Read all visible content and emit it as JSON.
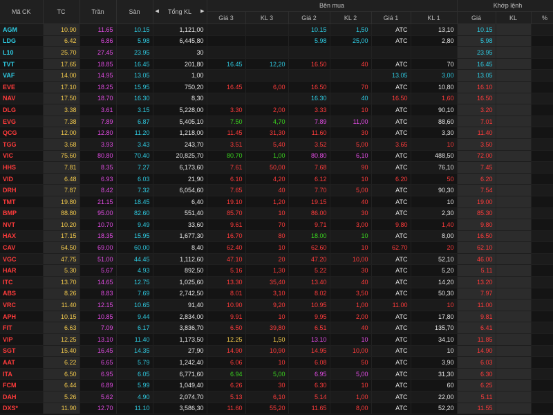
{
  "headers": {
    "symbol": "Mã CK",
    "ref": "TC",
    "ceil": "Trần",
    "floor": "Sàn",
    "total_vol": "Tổng KL",
    "bid_group": "Bên mua",
    "match_group": "Khớp lệnh",
    "bid3_price": "Giá 3",
    "bid3_vol": "KL 3",
    "bid2_price": "Giá 2",
    "bid2_vol": "KL 2",
    "bid1_price": "Giá 1",
    "bid1_vol": "KL 1",
    "match_price": "Giá",
    "match_vol": "KL",
    "match_pct": "%"
  },
  "colors": {
    "ref": "#f2c94c",
    "ceiling": "#e14be3",
    "floor": "#2ec9e0",
    "up": "#3ad11f",
    "down": "#ff3b3b",
    "neutral": "#e6e6e6"
  },
  "rows": [
    {
      "sym": "AGM",
      "symc": "floor",
      "ref": "10.90",
      "ceil": "11.65",
      "floor": "10.15",
      "tkl": "1,121,00",
      "g3": "",
      "g3c": "",
      "kl3": "",
      "kl3c": "",
      "g2": "10.15",
      "g2c": "floor",
      "kl2": "1,50",
      "kl2c": "floor",
      "g1": "ATC",
      "g1c": "w",
      "kl1": "13,10",
      "kl1c": "w",
      "mp": "10.15",
      "mpc": "floor",
      "mv": "",
      "mvc": "",
      "pct": "-",
      "pctc": "floor"
    },
    {
      "sym": "LDG",
      "symc": "floor",
      "ref": "6.42",
      "ceil": "6.86",
      "floor": "5.98",
      "tkl": "6,445,80",
      "g3": "",
      "g3c": "",
      "kl3": "",
      "kl3c": "",
      "g2": "5.98",
      "g2c": "floor",
      "kl2": "25,00",
      "kl2c": "floor",
      "g1": "ATC",
      "g1c": "w",
      "kl1": "2,80",
      "kl1c": "w",
      "mp": "5.98",
      "mpc": "floor",
      "mv": "",
      "mvc": "",
      "pct": "-",
      "pctc": "floor"
    },
    {
      "sym": "L10",
      "symc": "floor",
      "ref": "25.70",
      "ceil": "27.45",
      "floor": "23.95",
      "tkl": "30",
      "g3": "",
      "g3c": "",
      "kl3": "",
      "kl3c": "",
      "g2": "",
      "g2c": "",
      "kl2": "",
      "kl2c": "",
      "g1": "",
      "g1c": "",
      "kl1": "",
      "kl1c": "",
      "mp": "23.95",
      "mpc": "floor",
      "mv": "",
      "mvc": "",
      "pct": "-",
      "pctc": "floor"
    },
    {
      "sym": "TVT",
      "symc": "floor",
      "ref": "17.65",
      "ceil": "18.85",
      "floor": "16.45",
      "tkl": "201,80",
      "g3": "16.45",
      "g3c": "floor",
      "kl3": "12,20",
      "kl3c": "floor",
      "g2": "16.50",
      "g2c": "down",
      "kl2": "40",
      "kl2c": "down",
      "g1": "ATC",
      "g1c": "w",
      "kl1": "70",
      "kl1c": "w",
      "mp": "16.45",
      "mpc": "floor",
      "mv": "",
      "mvc": "",
      "pct": "-",
      "pctc": "floor"
    },
    {
      "sym": "VAF",
      "symc": "floor",
      "ref": "14.00",
      "ceil": "14.95",
      "floor": "13.05",
      "tkl": "1,00",
      "g3": "",
      "g3c": "",
      "kl3": "",
      "kl3c": "",
      "g2": "",
      "g2c": "",
      "kl2": "",
      "kl2c": "",
      "g1": "13.05",
      "g1c": "floor",
      "kl1": "3,00",
      "kl1c": "floor",
      "mp": "13.05",
      "mpc": "floor",
      "mv": "",
      "mvc": "",
      "pct": "-",
      "pctc": "floor"
    },
    {
      "sym": "EVE",
      "symc": "down",
      "ref": "17.10",
      "ceil": "18.25",
      "floor": "15.95",
      "tkl": "750,20",
      "g3": "16.45",
      "g3c": "down",
      "kl3": "6,00",
      "kl3c": "down",
      "g2": "16.50",
      "g2c": "down",
      "kl2": "70",
      "kl2c": "down",
      "g1": "ATC",
      "g1c": "w",
      "kl1": "10,80",
      "kl1c": "w",
      "mp": "16.10",
      "mpc": "down",
      "mv": "",
      "mvc": "",
      "pct": "-",
      "pctc": "down"
    },
    {
      "sym": "NAV",
      "symc": "down",
      "ref": "17.50",
      "ceil": "18.70",
      "floor": "16.30",
      "tkl": "8,30",
      "g3": "",
      "g3c": "",
      "kl3": "",
      "kl3c": "",
      "g2": "16.30",
      "g2c": "floor",
      "kl2": "40",
      "kl2c": "floor",
      "g1": "16.50",
      "g1c": "down",
      "kl1": "1,60",
      "kl1c": "down",
      "mp": "16.50",
      "mpc": "down",
      "mv": "",
      "mvc": "",
      "pct": "-",
      "pctc": "down"
    },
    {
      "sym": "DLG",
      "symc": "down",
      "ref": "3.38",
      "ceil": "3.61",
      "floor": "3.15",
      "tkl": "5,228,00",
      "g3": "3.30",
      "g3c": "down",
      "kl3": "2,00",
      "kl3c": "down",
      "g2": "3.33",
      "g2c": "down",
      "kl2": "10",
      "kl2c": "down",
      "g1": "ATC",
      "g1c": "w",
      "kl1": "90,10",
      "kl1c": "w",
      "mp": "3.20",
      "mpc": "down",
      "mv": "",
      "mvc": "",
      "pct": "-",
      "pctc": "down"
    },
    {
      "sym": "EVG",
      "symc": "down",
      "ref": "7.38",
      "ceil": "7.89",
      "floor": "6.87",
      "tkl": "5,405,10",
      "g3": "7.50",
      "g3c": "up",
      "kl3": "4,70",
      "kl3c": "up",
      "g2": "7.89",
      "g2c": "ceil",
      "kl2": "11,00",
      "kl2c": "ceil",
      "g1": "ATC",
      "g1c": "w",
      "kl1": "88,60",
      "kl1c": "w",
      "mp": "7.01",
      "mpc": "down",
      "mv": "",
      "mvc": "",
      "pct": "-",
      "pctc": "down"
    },
    {
      "sym": "QCG",
      "symc": "down",
      "ref": "12.00",
      "ceil": "12.80",
      "floor": "11.20",
      "tkl": "1,218,00",
      "g3": "11.45",
      "g3c": "down",
      "kl3": "31,30",
      "kl3c": "down",
      "g2": "11.60",
      "g2c": "down",
      "kl2": "30",
      "kl2c": "down",
      "g1": "ATC",
      "g1c": "w",
      "kl1": "3,30",
      "kl1c": "w",
      "mp": "11.40",
      "mpc": "down",
      "mv": "",
      "mvc": "",
      "pct": "-",
      "pctc": "down"
    },
    {
      "sym": "TGG",
      "symc": "down",
      "ref": "3.68",
      "ceil": "3.93",
      "floor": "3.43",
      "tkl": "243,70",
      "g3": "3.51",
      "g3c": "down",
      "kl3": "5,40",
      "kl3c": "down",
      "g2": "3.52",
      "g2c": "down",
      "kl2": "5,00",
      "kl2c": "down",
      "g1": "3.65",
      "g1c": "down",
      "kl1": "10",
      "kl1c": "down",
      "mp": "3.50",
      "mpc": "down",
      "mv": "",
      "mvc": "",
      "pct": "-",
      "pctc": "down"
    },
    {
      "sym": "VIC",
      "symc": "down",
      "ref": "75.60",
      "ceil": "80.80",
      "floor": "70.40",
      "tkl": "20,825,70",
      "g3": "80.70",
      "g3c": "up",
      "kl3": "1,00",
      "kl3c": "up",
      "g2": "80.80",
      "g2c": "ceil",
      "kl2": "6,10",
      "kl2c": "ceil",
      "g1": "ATC",
      "g1c": "w",
      "kl1": "488,50",
      "kl1c": "w",
      "mp": "72.00",
      "mpc": "down",
      "mv": "",
      "mvc": "",
      "pct": "-",
      "pctc": "down"
    },
    {
      "sym": "HHS",
      "symc": "down",
      "ref": "7.81",
      "ceil": "8.35",
      "floor": "7.27",
      "tkl": "6,173,60",
      "g3": "7.61",
      "g3c": "down",
      "kl3": "50,00",
      "kl3c": "down",
      "g2": "7.68",
      "g2c": "down",
      "kl2": "90",
      "kl2c": "down",
      "g1": "ATC",
      "g1c": "w",
      "kl1": "76,10",
      "kl1c": "w",
      "mp": "7.45",
      "mpc": "down",
      "mv": "",
      "mvc": "",
      "pct": "-",
      "pctc": "down"
    },
    {
      "sym": "VID",
      "symc": "down",
      "ref": "6.48",
      "ceil": "6.93",
      "floor": "6.03",
      "tkl": "21,90",
      "g3": "6.10",
      "g3c": "down",
      "kl3": "4,20",
      "kl3c": "down",
      "g2": "6.12",
      "g2c": "down",
      "kl2": "10",
      "kl2c": "down",
      "g1": "6.20",
      "g1c": "down",
      "kl1": "50",
      "kl1c": "down",
      "mp": "6.20",
      "mpc": "down",
      "mv": "",
      "mvc": "",
      "pct": "-",
      "pctc": "down"
    },
    {
      "sym": "DRH",
      "symc": "down",
      "ref": "7.87",
      "ceil": "8.42",
      "floor": "7.32",
      "tkl": "6,054,60",
      "g3": "7.65",
      "g3c": "down",
      "kl3": "40",
      "kl3c": "down",
      "g2": "7.70",
      "g2c": "down",
      "kl2": "5,00",
      "kl2c": "down",
      "g1": "ATC",
      "g1c": "w",
      "kl1": "90,30",
      "kl1c": "w",
      "mp": "7.54",
      "mpc": "down",
      "mv": "",
      "mvc": "",
      "pct": "-",
      "pctc": "down"
    },
    {
      "sym": "TMT",
      "symc": "down",
      "ref": "19.80",
      "ceil": "21.15",
      "floor": "18.45",
      "tkl": "6,40",
      "g3": "19.10",
      "g3c": "down",
      "kl3": "1,20",
      "kl3c": "down",
      "g2": "19.15",
      "g2c": "down",
      "kl2": "40",
      "kl2c": "down",
      "g1": "ATC",
      "g1c": "w",
      "kl1": "10",
      "kl1c": "w",
      "mp": "19.00",
      "mpc": "down",
      "mv": "",
      "mvc": "",
      "pct": "-",
      "pctc": "down"
    },
    {
      "sym": "BMP",
      "symc": "down",
      "ref": "88.80",
      "ceil": "95.00",
      "floor": "82.60",
      "tkl": "551,40",
      "g3": "85.70",
      "g3c": "down",
      "kl3": "10",
      "kl3c": "down",
      "g2": "86.00",
      "g2c": "down",
      "kl2": "30",
      "kl2c": "down",
      "g1": "ATC",
      "g1c": "w",
      "kl1": "2,30",
      "kl1c": "w",
      "mp": "85.30",
      "mpc": "down",
      "mv": "",
      "mvc": "",
      "pct": "-",
      "pctc": "down"
    },
    {
      "sym": "NVT",
      "symc": "down",
      "ref": "10.20",
      "ceil": "10.70",
      "floor": "9.49",
      "tkl": "33,60",
      "g3": "9.61",
      "g3c": "down",
      "kl3": "70",
      "kl3c": "down",
      "g2": "9.71",
      "g2c": "down",
      "kl2": "3,00",
      "kl2c": "down",
      "g1": "9.80",
      "g1c": "down",
      "kl1": "1,40",
      "kl1c": "down",
      "mp": "9.80",
      "mpc": "down",
      "mv": "",
      "mvc": "",
      "pct": "-",
      "pctc": "down"
    },
    {
      "sym": "HAX",
      "symc": "down",
      "ref": "17.15",
      "ceil": "18.35",
      "floor": "15.95",
      "tkl": "1,677,30",
      "g3": "16.70",
      "g3c": "down",
      "kl3": "80",
      "kl3c": "down",
      "g2": "18.00",
      "g2c": "up",
      "kl2": "10",
      "kl2c": "up",
      "g1": "ATC",
      "g1c": "w",
      "kl1": "8,00",
      "kl1c": "w",
      "mp": "16.50",
      "mpc": "down",
      "mv": "",
      "mvc": "",
      "pct": "-",
      "pctc": "down"
    },
    {
      "sym": "CAV",
      "symc": "down",
      "ref": "64.50",
      "ceil": "69.00",
      "floor": "60.00",
      "tkl": "8,40",
      "g3": "62.40",
      "g3c": "down",
      "kl3": "10",
      "kl3c": "down",
      "g2": "62.60",
      "g2c": "down",
      "kl2": "10",
      "kl2c": "down",
      "g1": "62.70",
      "g1c": "down",
      "kl1": "20",
      "kl1c": "down",
      "mp": "62.10",
      "mpc": "down",
      "mv": "",
      "mvc": "",
      "pct": "-",
      "pctc": "down"
    },
    {
      "sym": "VGC",
      "symc": "down",
      "ref": "47.75",
      "ceil": "51.00",
      "floor": "44.45",
      "tkl": "1,112,60",
      "g3": "47.10",
      "g3c": "down",
      "kl3": "20",
      "kl3c": "down",
      "g2": "47.20",
      "g2c": "down",
      "kl2": "10,00",
      "kl2c": "down",
      "g1": "ATC",
      "g1c": "w",
      "kl1": "52,10",
      "kl1c": "w",
      "mp": "46.00",
      "mpc": "down",
      "mv": "",
      "mvc": "",
      "pct": "-",
      "pctc": "down"
    },
    {
      "sym": "HAR",
      "symc": "down",
      "ref": "5.30",
      "ceil": "5.67",
      "floor": "4.93",
      "tkl": "892,50",
      "g3": "5.16",
      "g3c": "down",
      "kl3": "1,30",
      "kl3c": "down",
      "g2": "5.22",
      "g2c": "down",
      "kl2": "30",
      "kl2c": "down",
      "g1": "ATC",
      "g1c": "w",
      "kl1": "5,20",
      "kl1c": "w",
      "mp": "5.11",
      "mpc": "down",
      "mv": "",
      "mvc": "",
      "pct": "-",
      "pctc": "down"
    },
    {
      "sym": "ITC",
      "symc": "down",
      "ref": "13.70",
      "ceil": "14.65",
      "floor": "12.75",
      "tkl": "1,025,60",
      "g3": "13.30",
      "g3c": "down",
      "kl3": "35,40",
      "kl3c": "down",
      "g2": "13.40",
      "g2c": "down",
      "kl2": "40",
      "kl2c": "down",
      "g1": "ATC",
      "g1c": "w",
      "kl1": "14,20",
      "kl1c": "w",
      "mp": "13.20",
      "mpc": "down",
      "mv": "",
      "mvc": "",
      "pct": "-",
      "pctc": "down"
    },
    {
      "sym": "ABS",
      "symc": "down",
      "ref": "8.26",
      "ceil": "8.83",
      "floor": "7.69",
      "tkl": "2,742,50",
      "g3": "8.01",
      "g3c": "down",
      "kl3": "3,10",
      "kl3c": "down",
      "g2": "8.02",
      "g2c": "down",
      "kl2": "3,50",
      "kl2c": "down",
      "g1": "ATC",
      "g1c": "w",
      "kl1": "50,30",
      "kl1c": "w",
      "mp": "7.97",
      "mpc": "down",
      "mv": "",
      "mvc": "",
      "pct": "-",
      "pctc": "down"
    },
    {
      "sym": "VRC",
      "symc": "down",
      "ref": "11.40",
      "ceil": "12.15",
      "floor": "10.65",
      "tkl": "91,40",
      "g3": "10.90",
      "g3c": "down",
      "kl3": "9,20",
      "kl3c": "down",
      "g2": "10.95",
      "g2c": "down",
      "kl2": "1,00",
      "kl2c": "down",
      "g1": "11.00",
      "g1c": "down",
      "kl1": "10",
      "kl1c": "down",
      "mp": "11.00",
      "mpc": "down",
      "mv": "",
      "mvc": "",
      "pct": "-",
      "pctc": "down"
    },
    {
      "sym": "APH",
      "symc": "down",
      "ref": "10.15",
      "ceil": "10.85",
      "floor": "9.44",
      "tkl": "2,834,00",
      "g3": "9.91",
      "g3c": "down",
      "kl3": "10",
      "kl3c": "down",
      "g2": "9.95",
      "g2c": "down",
      "kl2": "2,00",
      "kl2c": "down",
      "g1": "ATC",
      "g1c": "w",
      "kl1": "17,80",
      "kl1c": "w",
      "mp": "9.81",
      "mpc": "down",
      "mv": "",
      "mvc": "",
      "pct": "-",
      "pctc": "down"
    },
    {
      "sym": "FIT",
      "symc": "down",
      "ref": "6.63",
      "ceil": "7.09",
      "floor": "6.17",
      "tkl": "3,836,70",
      "g3": "6.50",
      "g3c": "down",
      "kl3": "39,80",
      "kl3c": "down",
      "g2": "6.51",
      "g2c": "down",
      "kl2": "40",
      "kl2c": "down",
      "g1": "ATC",
      "g1c": "w",
      "kl1": "135,70",
      "kl1c": "w",
      "mp": "6.41",
      "mpc": "down",
      "mv": "",
      "mvc": "",
      "pct": "-",
      "pctc": "down"
    },
    {
      "sym": "VIP",
      "symc": "down",
      "ref": "12.25",
      "ceil": "13.10",
      "floor": "11.40",
      "tkl": "1,173,50",
      "g3": "12.25",
      "g3c": "ref",
      "kl3": "1,50",
      "kl3c": "ref",
      "g2": "13.10",
      "g2c": "ceil",
      "kl2": "10",
      "kl2c": "ceil",
      "g1": "ATC",
      "g1c": "w",
      "kl1": "34,10",
      "kl1c": "w",
      "mp": "11.85",
      "mpc": "down",
      "mv": "",
      "mvc": "",
      "pct": "-",
      "pctc": "down"
    },
    {
      "sym": "SGT",
      "symc": "down",
      "ref": "15.40",
      "ceil": "16.45",
      "floor": "14.35",
      "tkl": "27,90",
      "g3": "14.90",
      "g3c": "down",
      "kl3": "10,90",
      "kl3c": "down",
      "g2": "14.95",
      "g2c": "down",
      "kl2": "10,00",
      "kl2c": "down",
      "g1": "ATC",
      "g1c": "w",
      "kl1": "10",
      "kl1c": "w",
      "mp": "14.90",
      "mpc": "down",
      "mv": "",
      "mvc": "",
      "pct": "-",
      "pctc": "down"
    },
    {
      "sym": "AAT",
      "symc": "down",
      "ref": "6.22",
      "ceil": "6.65",
      "floor": "5.79",
      "tkl": "1,242,40",
      "g3": "6.06",
      "g3c": "down",
      "kl3": "10",
      "kl3c": "down",
      "g2": "6.08",
      "g2c": "down",
      "kl2": "50",
      "kl2c": "down",
      "g1": "ATC",
      "g1c": "w",
      "kl1": "3,90",
      "kl1c": "w",
      "mp": "6.03",
      "mpc": "down",
      "mv": "",
      "mvc": "",
      "pct": "-",
      "pctc": "down"
    },
    {
      "sym": "ITA",
      "symc": "down",
      "ref": "6.50",
      "ceil": "6.95",
      "floor": "6.05",
      "tkl": "6,771,60",
      "g3": "6.94",
      "g3c": "up",
      "kl3": "5,00",
      "kl3c": "up",
      "g2": "6.95",
      "g2c": "ceil",
      "kl2": "5,00",
      "kl2c": "ceil",
      "g1": "ATC",
      "g1c": "w",
      "kl1": "31,30",
      "kl1c": "w",
      "mp": "6.30",
      "mpc": "down",
      "mv": "",
      "mvc": "",
      "pct": "-",
      "pctc": "down"
    },
    {
      "sym": "FCM",
      "symc": "down",
      "ref": "6.44",
      "ceil": "6.89",
      "floor": "5.99",
      "tkl": "1,049,40",
      "g3": "6.26",
      "g3c": "down",
      "kl3": "30",
      "kl3c": "down",
      "g2": "6.30",
      "g2c": "down",
      "kl2": "10",
      "kl2c": "down",
      "g1": "ATC",
      "g1c": "w",
      "kl1": "60",
      "kl1c": "w",
      "mp": "6.25",
      "mpc": "down",
      "mv": "",
      "mvc": "",
      "pct": "-",
      "pctc": "down"
    },
    {
      "sym": "DAH",
      "symc": "down",
      "ref": "5.26",
      "ceil": "5.62",
      "floor": "4.90",
      "tkl": "2,074,70",
      "g3": "5.13",
      "g3c": "down",
      "kl3": "6,10",
      "kl3c": "down",
      "g2": "5.14",
      "g2c": "down",
      "kl2": "1,00",
      "kl2c": "down",
      "g1": "ATC",
      "g1c": "w",
      "kl1": "22,00",
      "kl1c": "w",
      "mp": "5.11",
      "mpc": "down",
      "mv": "",
      "mvc": "",
      "pct": "-",
      "pctc": "down"
    },
    {
      "sym": "DXS*",
      "symc": "down",
      "ref": "11.90",
      "ceil": "12.70",
      "floor": "11.10",
      "tkl": "3,586,30",
      "g3": "11.60",
      "g3c": "down",
      "kl3": "55,20",
      "kl3c": "down",
      "g2": "11.65",
      "g2c": "down",
      "kl2": "8,00",
      "kl2c": "down",
      "g1": "ATC",
      "g1c": "w",
      "kl1": "52,20",
      "kl1c": "w",
      "mp": "11.55",
      "mpc": "down",
      "mv": "",
      "mvc": "",
      "pct": "-",
      "pctc": "down"
    }
  ]
}
